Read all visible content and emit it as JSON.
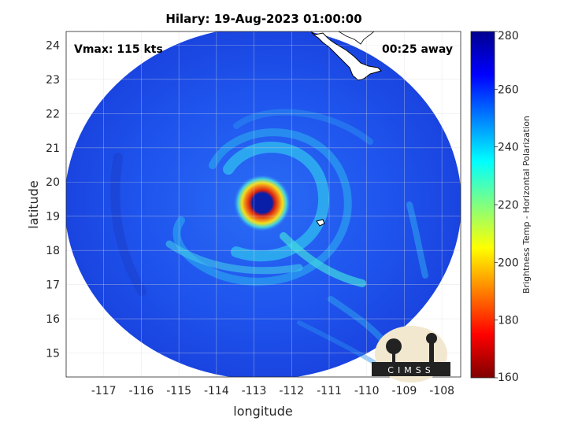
{
  "title": "Hilary: 19-Aug-2023 01:00:00",
  "vmax_label": "Vmax: 115 kts",
  "away_label": "00:25 away",
  "xlabel": "longitude",
  "ylabel": "latitude",
  "colorbar_label": "Brightness Temp - Horizontal Polarization",
  "logo_text": "CIMSS",
  "map": {
    "lon_range": [
      -118,
      -107.5
    ],
    "lat_range": [
      14.3,
      24.4
    ],
    "lon_ticks": [
      "-117",
      "-116",
      "-115",
      "-114",
      "-113",
      "-112",
      "-111",
      "-110",
      "-109",
      "-108"
    ],
    "lat_ticks": [
      "15",
      "16",
      "17",
      "18",
      "19",
      "20",
      "21",
      "22",
      "23",
      "24"
    ],
    "grid": true,
    "storm_center": {
      "lon": -112.7,
      "lat": 19.3
    },
    "colors": {
      "background": "#1a4cf0",
      "eye": "#0a1fa8",
      "eyewall": "#f07818",
      "coast": "#ffffff"
    }
  },
  "colorbar": {
    "min": 160,
    "max": 280,
    "ticks": [
      "280",
      "260",
      "240",
      "220",
      "200",
      "180",
      "160"
    ],
    "colors": [
      "#7f0000",
      "#ff0000",
      "#ff8000",
      "#ffff00",
      "#80ff80",
      "#00ffff",
      "#0080ff",
      "#0000ff",
      "#00008f"
    ]
  }
}
